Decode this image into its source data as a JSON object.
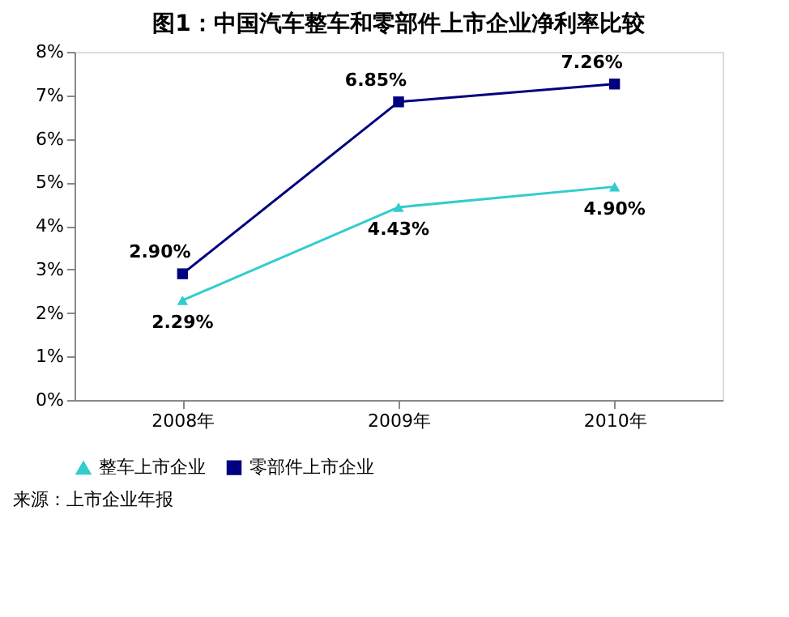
{
  "chart_data": {
    "type": "line",
    "title": "图1：中国汽车整车和零部件上市企业净利率比较",
    "categories": [
      "2008年",
      "2009年",
      "2010年"
    ],
    "series": [
      {
        "name": "整车上市企业",
        "color": "#33cccc",
        "marker": "triangle",
        "values": [
          2.29,
          4.43,
          4.9
        ],
        "value_labels": [
          "2.29%",
          "4.43%",
          "4.90%"
        ]
      },
      {
        "name": "零部件上市企业",
        "color": "#000080",
        "marker": "square",
        "values": [
          2.9,
          6.85,
          7.26
        ],
        "value_labels": [
          "2.90%",
          "6.85%",
          "7.26%"
        ]
      }
    ],
    "ylim": [
      0,
      8
    ],
    "yticks": [
      {
        "value": 0,
        "label": "0%"
      },
      {
        "value": 1,
        "label": "1%"
      },
      {
        "value": 2,
        "label": "2%"
      },
      {
        "value": 3,
        "label": "3%"
      },
      {
        "value": 4,
        "label": "4%"
      },
      {
        "value": 5,
        "label": "5%"
      },
      {
        "value": 6,
        "label": "6%"
      },
      {
        "value": 7,
        "label": "7%"
      },
      {
        "value": 8,
        "label": "8%"
      }
    ],
    "grid": false,
    "legend": "bottom",
    "line_style": "solid",
    "annotations": [
      "来源：上市企业年报"
    ]
  }
}
